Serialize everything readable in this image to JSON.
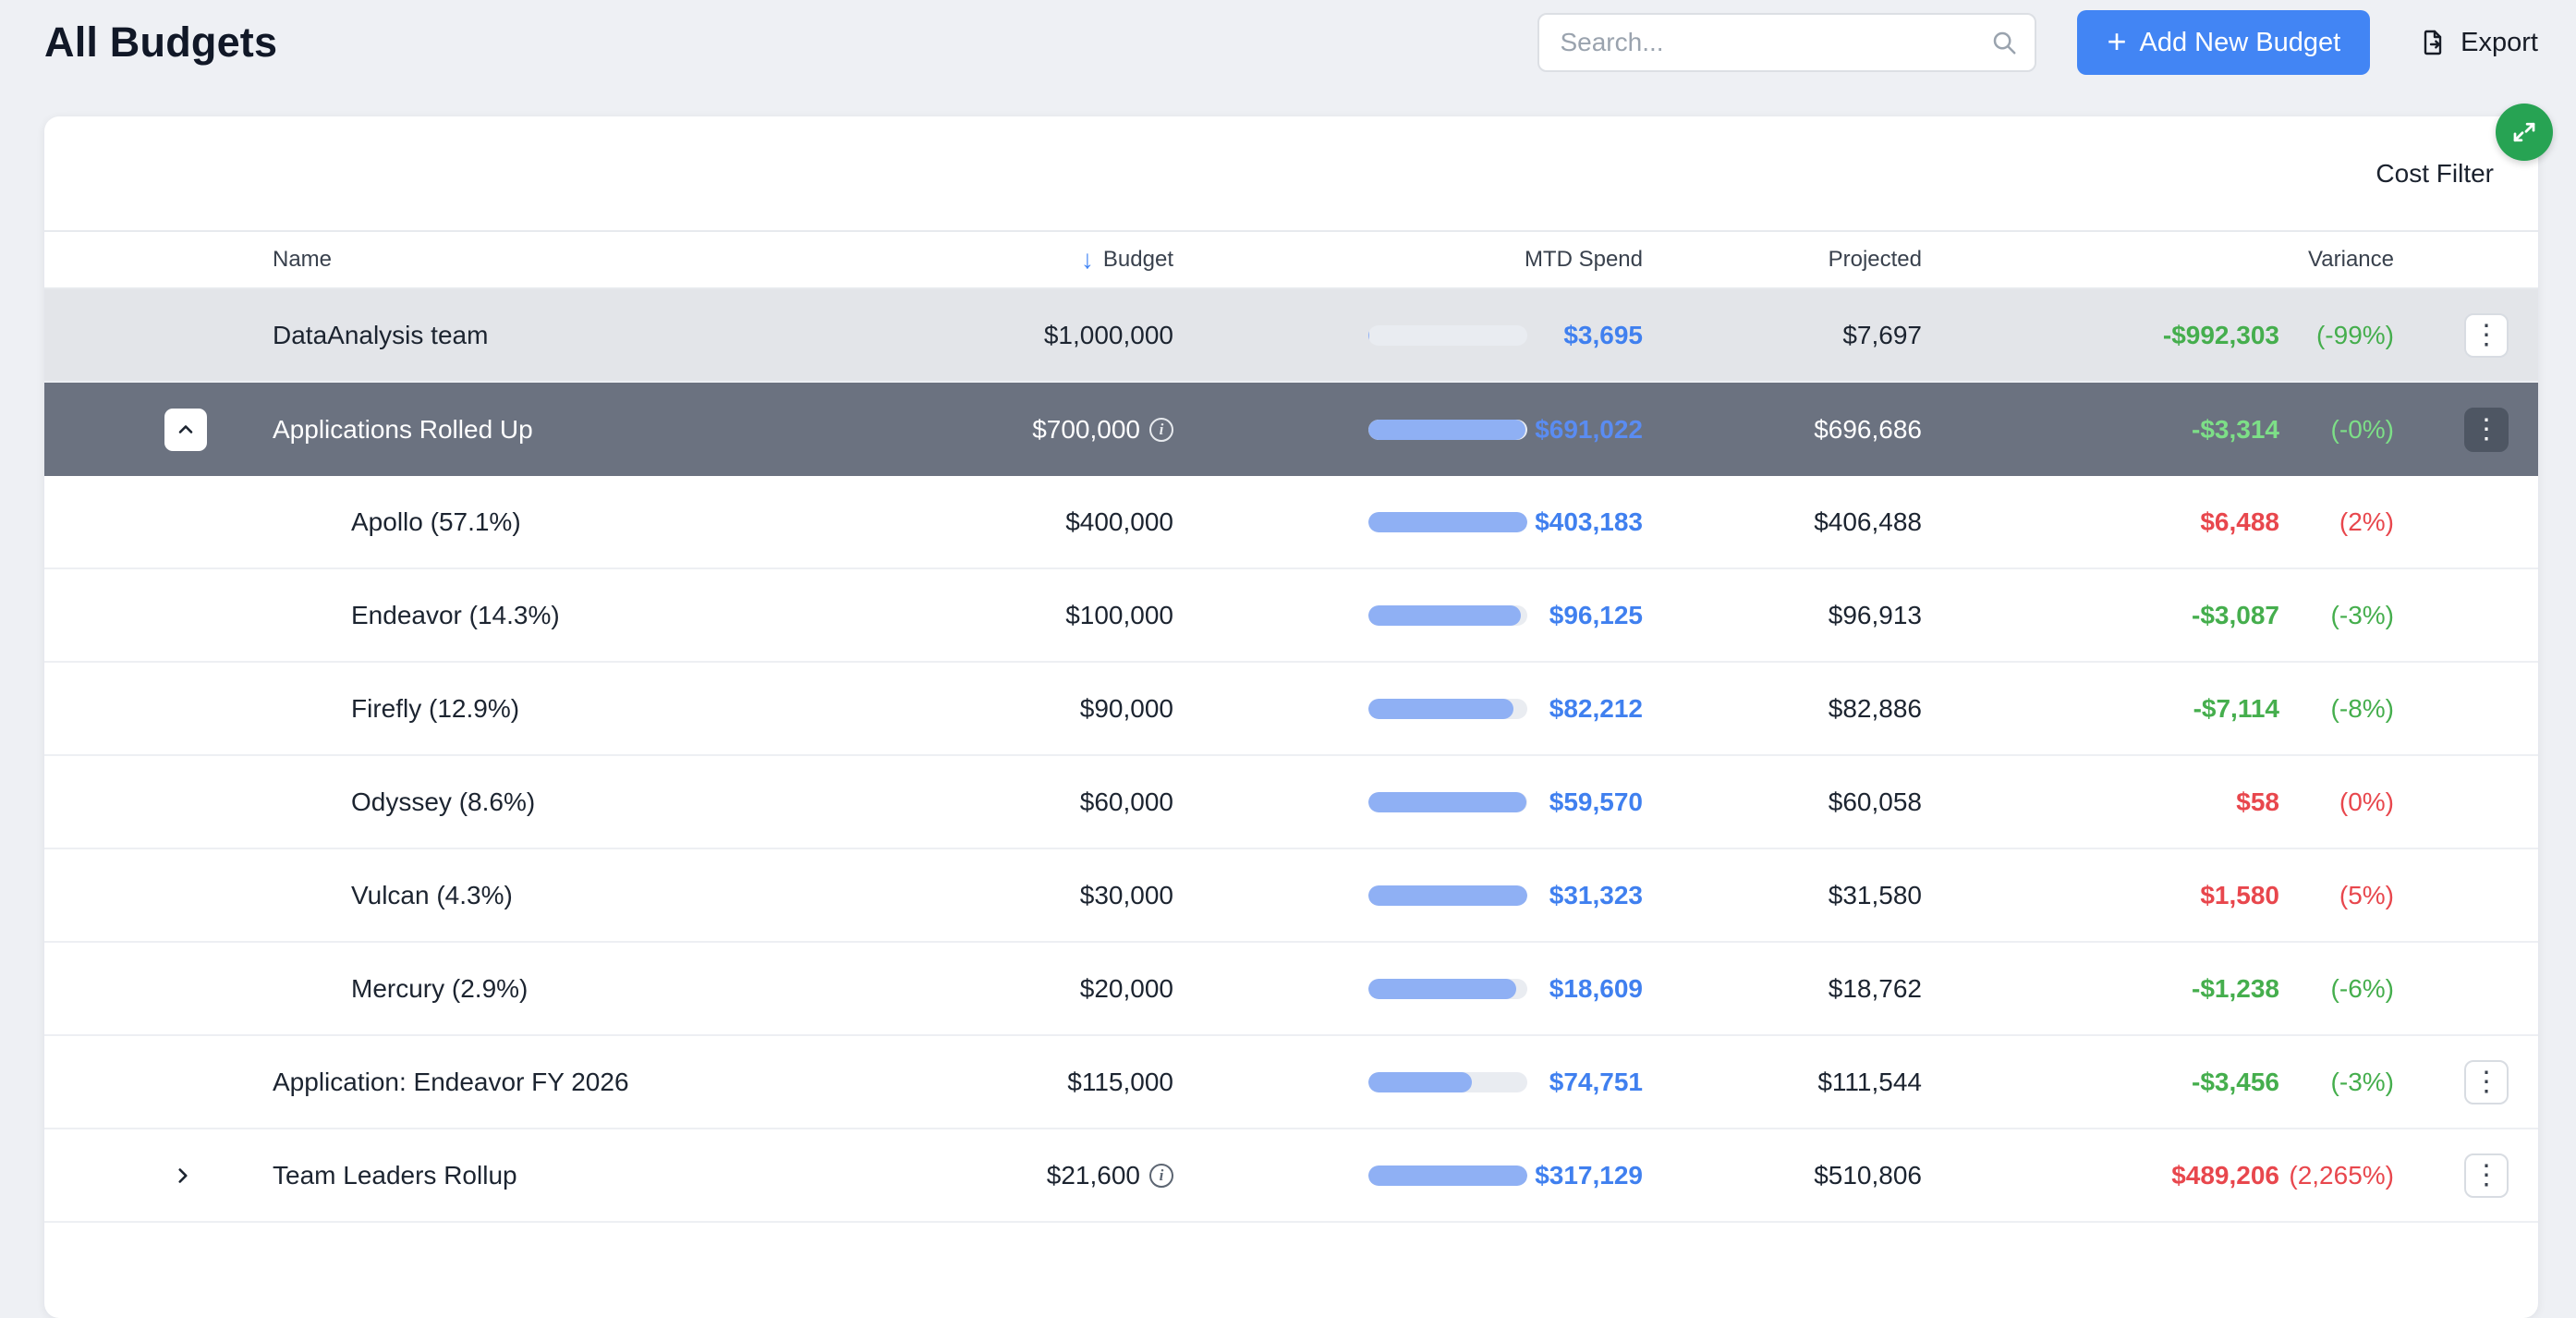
{
  "page": {
    "title": "All Budgets"
  },
  "header": {
    "search_placeholder": "Search...",
    "add_button_label": "Add New Budget",
    "export_label": "Export"
  },
  "panel": {
    "cost_filter_label": "Cost Filter"
  },
  "icons": {
    "plus": "+",
    "sort_desc": "↓",
    "kebab": "⋮",
    "info": "i"
  },
  "colors": {
    "accent_blue": "#4285f4",
    "bar_fill_blue": "#8fb0f4",
    "mtd_value_blue": "#4080ef",
    "variance_good_green": "#45ae4d",
    "variance_bad_red": "#e8474d",
    "dark_row_gray": "#6b7280",
    "highlight_row_gray": "#e3e5e9",
    "fab_green": "#27a353"
  },
  "table": {
    "columns": [
      "Name",
      "Budget",
      "MTD Spend",
      "Projected",
      "Variance"
    ],
    "sorted_column": "Budget",
    "sort_direction": "desc",
    "rows": [
      {
        "name": "DataAnalysis team",
        "level": 0,
        "style": "highlight",
        "chevron": null,
        "budget": "$1,000,000",
        "budget_info": false,
        "mtd": "$3,695",
        "mtd_pct": 0.4,
        "projected": "$7,697",
        "variance": "-$992,303",
        "variance_pct": "(-99%)",
        "variance_tone": "good",
        "menu": true
      },
      {
        "name": "Applications Rolled Up",
        "level": 0,
        "style": "dark",
        "chevron": "up",
        "budget": "$700,000",
        "budget_info": true,
        "mtd": "$691,022",
        "mtd_pct": 98.7,
        "projected": "$696,686",
        "variance": "-$3,314",
        "variance_pct": "(-0%)",
        "variance_tone": "good",
        "menu": true
      },
      {
        "name": "Apollo (57.1%)",
        "level": 1,
        "style": null,
        "chevron": null,
        "budget": "$400,000",
        "budget_info": false,
        "mtd": "$403,183",
        "mtd_pct": 100.8,
        "projected": "$406,488",
        "variance": "$6,488",
        "variance_pct": "(2%)",
        "variance_tone": "bad",
        "menu": false
      },
      {
        "name": "Endeavor (14.3%)",
        "level": 1,
        "style": null,
        "chevron": null,
        "budget": "$100,000",
        "budget_info": false,
        "mtd": "$96,125",
        "mtd_pct": 96.1,
        "projected": "$96,913",
        "variance": "-$3,087",
        "variance_pct": "(-3%)",
        "variance_tone": "good",
        "menu": false
      },
      {
        "name": "Firefly (12.9%)",
        "level": 1,
        "style": null,
        "chevron": null,
        "budget": "$90,000",
        "budget_info": false,
        "mtd": "$82,212",
        "mtd_pct": 91.3,
        "projected": "$82,886",
        "variance": "-$7,114",
        "variance_pct": "(-8%)",
        "variance_tone": "good",
        "menu": false
      },
      {
        "name": "Odyssey (8.6%)",
        "level": 1,
        "style": null,
        "chevron": null,
        "budget": "$60,000",
        "budget_info": false,
        "mtd": "$59,570",
        "mtd_pct": 99.3,
        "projected": "$60,058",
        "variance": "$58",
        "variance_pct": "(0%)",
        "variance_tone": "bad",
        "menu": false
      },
      {
        "name": "Vulcan (4.3%)",
        "level": 1,
        "style": null,
        "chevron": null,
        "budget": "$30,000",
        "budget_info": false,
        "mtd": "$31,323",
        "mtd_pct": 104.4,
        "projected": "$31,580",
        "variance": "$1,580",
        "variance_pct": "(5%)",
        "variance_tone": "bad",
        "menu": false
      },
      {
        "name": "Mercury (2.9%)",
        "level": 1,
        "style": null,
        "chevron": null,
        "budget": "$20,000",
        "budget_info": false,
        "mtd": "$18,609",
        "mtd_pct": 93.0,
        "projected": "$18,762",
        "variance": "-$1,238",
        "variance_pct": "(-6%)",
        "variance_tone": "good",
        "menu": false
      },
      {
        "name": "Application: Endeavor FY 2026",
        "level": 0,
        "style": null,
        "chevron": null,
        "budget": "$115,000",
        "budget_info": false,
        "mtd": "$74,751",
        "mtd_pct": 65.0,
        "projected": "$111,544",
        "variance": "-$3,456",
        "variance_pct": "(-3%)",
        "variance_tone": "good",
        "menu": true
      },
      {
        "name": "Team Leaders Rollup",
        "level": 0,
        "style": null,
        "chevron": "right",
        "budget": "$21,600",
        "budget_info": true,
        "mtd": "$317,129",
        "mtd_pct": 100,
        "projected": "$510,806",
        "variance": "$489,206",
        "variance_pct": "(2,265%)",
        "variance_tone": "bad",
        "menu": true
      }
    ]
  }
}
